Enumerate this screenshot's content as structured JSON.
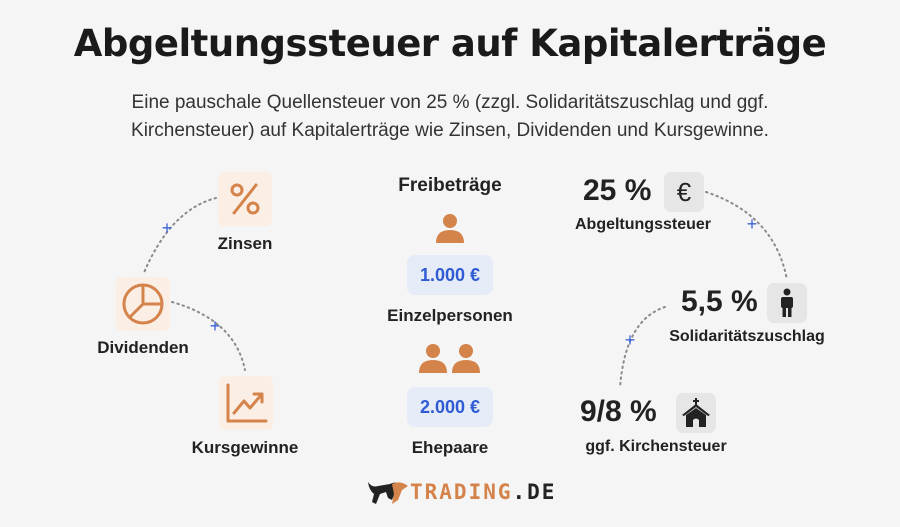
{
  "title": "Abgeltungssteuer auf Kapitalerträge",
  "subtitle": {
    "line1": "Eine pauschale Quellensteuer von 25 % (zzgl. Solidaritätszuschlag und ggf.",
    "line2": "Kirchensteuer) auf Kapitalerträge wie Zinsen, Dividenden und Kursgewinne."
  },
  "income_types": [
    {
      "label": "Zinsen",
      "icon": "percent-icon"
    },
    {
      "label": "Dividenden",
      "icon": "pie-chart-icon"
    },
    {
      "label": "Kursgewinne",
      "icon": "trend-chart-icon"
    }
  ],
  "allowances": {
    "heading": "Freibeträge",
    "items": [
      {
        "amount": "1.000 €",
        "label": "Einzelpersonen",
        "icon": "person-icon"
      },
      {
        "amount": "2.000 €",
        "label": "Ehepaare",
        "icon": "couple-icon"
      }
    ]
  },
  "taxes": [
    {
      "rate": "25 %",
      "label": "Abgeltungssteuer",
      "icon": "euro-icon"
    },
    {
      "rate": "5,5 %",
      "label": "Solidaritätszuschlag",
      "icon": "person-standing-icon"
    },
    {
      "rate": "9/8 %",
      "label": "ggf. Kirchensteuer",
      "icon": "church-icon"
    }
  ],
  "plus_symbol": "+",
  "logo": {
    "text_main": "TRADING",
    "text_suffix": ".DE"
  },
  "colors": {
    "accent": "#d4834a",
    "blue": "#2f5bd3",
    "badge_bg": "#e6ebf8"
  }
}
